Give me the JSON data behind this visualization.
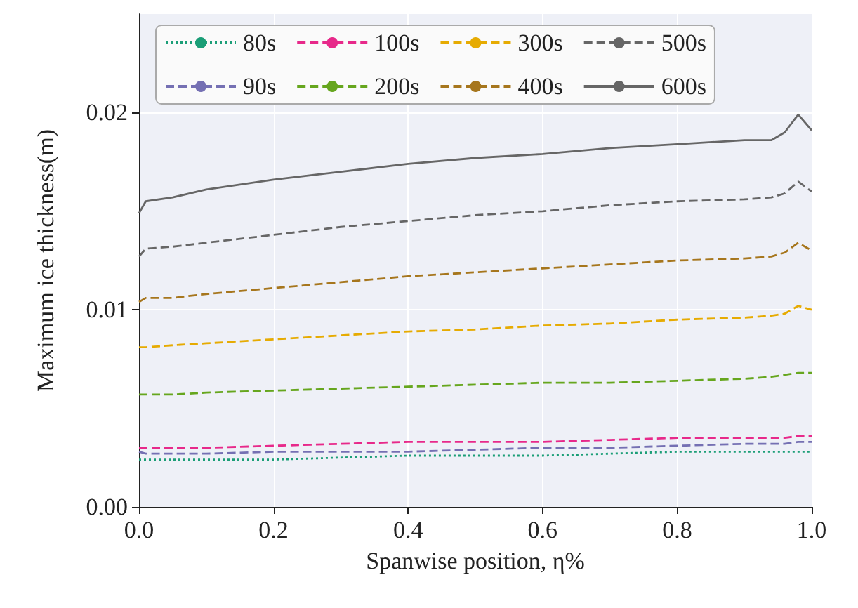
{
  "chart_data": {
    "type": "line",
    "xlabel": "Spanwise position, η%",
    "ylabel": "Maximum ice thickness(m)",
    "xlim": [
      0,
      1
    ],
    "ylim": [
      0,
      0.025
    ],
    "xticks": [
      {
        "value": 0,
        "label": "0.0"
      },
      {
        "value": 0.2,
        "label": "0.2"
      },
      {
        "value": 0.4,
        "label": "0.4"
      },
      {
        "value": 0.6,
        "label": "0.6"
      },
      {
        "value": 0.8,
        "label": "0.8"
      },
      {
        "value": 1,
        "label": "1.0"
      }
    ],
    "yticks": [
      {
        "value": 0,
        "label": "0.00"
      },
      {
        "value": 0.01,
        "label": "0.01"
      },
      {
        "value": 0.02,
        "label": "0.02"
      }
    ],
    "grid": true,
    "legend": "top",
    "marker": "none",
    "x": [
      0,
      0.01,
      0.05,
      0.1,
      0.2,
      0.3,
      0.4,
      0.5,
      0.6,
      0.7,
      0.8,
      0.9,
      0.94,
      0.96,
      0.98,
      1
    ],
    "series": [
      {
        "name": "80s",
        "color": "#1b9e77",
        "line_style": "dotted",
        "values": [
          0.0024,
          0.0024,
          0.0024,
          0.0024,
          0.0024,
          0.0025,
          0.0026,
          0.0026,
          0.0026,
          0.0027,
          0.0028,
          0.0028,
          0.0028,
          0.0028,
          0.0028,
          0.0028
        ]
      },
      {
        "name": "90s",
        "color": "#7570b3",
        "line_style": "dashed",
        "values": [
          0.0028,
          0.0027,
          0.0027,
          0.0027,
          0.0028,
          0.0028,
          0.0028,
          0.0029,
          0.003,
          0.003,
          0.0031,
          0.0032,
          0.0032,
          0.0032,
          0.0033,
          0.0033
        ]
      },
      {
        "name": "100s",
        "color": "#e7298a",
        "line_style": "dashed",
        "values": [
          0.003,
          0.003,
          0.003,
          0.003,
          0.0031,
          0.0032,
          0.0033,
          0.0033,
          0.0033,
          0.0034,
          0.0035,
          0.0035,
          0.0035,
          0.0035,
          0.0036,
          0.0036
        ]
      },
      {
        "name": "200s",
        "color": "#66a61e",
        "line_style": "dashed",
        "values": [
          0.0057,
          0.0057,
          0.0057,
          0.0058,
          0.0059,
          0.006,
          0.0061,
          0.0062,
          0.0063,
          0.0063,
          0.0064,
          0.0065,
          0.0066,
          0.0067,
          0.0068,
          0.0068
        ]
      },
      {
        "name": "300s",
        "color": "#e6ab02",
        "line_style": "dashed",
        "values": [
          0.0081,
          0.0081,
          0.0082,
          0.0083,
          0.0085,
          0.0087,
          0.0089,
          0.009,
          0.0092,
          0.0093,
          0.0095,
          0.0096,
          0.0097,
          0.0098,
          0.0102,
          0.01
        ]
      },
      {
        "name": "400s",
        "color": "#a6761d",
        "line_style": "dashed",
        "values": [
          0.0104,
          0.0106,
          0.0106,
          0.0108,
          0.0111,
          0.0114,
          0.0117,
          0.0119,
          0.0121,
          0.0123,
          0.0125,
          0.0126,
          0.0127,
          0.0129,
          0.0134,
          0.013
        ]
      },
      {
        "name": "500s",
        "color": "#666666",
        "line_style": "dashed",
        "values": [
          0.0127,
          0.0131,
          0.0132,
          0.0134,
          0.0138,
          0.0142,
          0.0145,
          0.0148,
          0.015,
          0.0153,
          0.0155,
          0.0156,
          0.0157,
          0.0159,
          0.0165,
          0.016
        ]
      },
      {
        "name": "600s",
        "color": "#666666",
        "line_style": "solid",
        "values": [
          0.0149,
          0.0155,
          0.0157,
          0.0161,
          0.0166,
          0.017,
          0.0174,
          0.0177,
          0.0179,
          0.0182,
          0.0184,
          0.0186,
          0.0186,
          0.019,
          0.0199,
          0.0191
        ]
      }
    ]
  }
}
